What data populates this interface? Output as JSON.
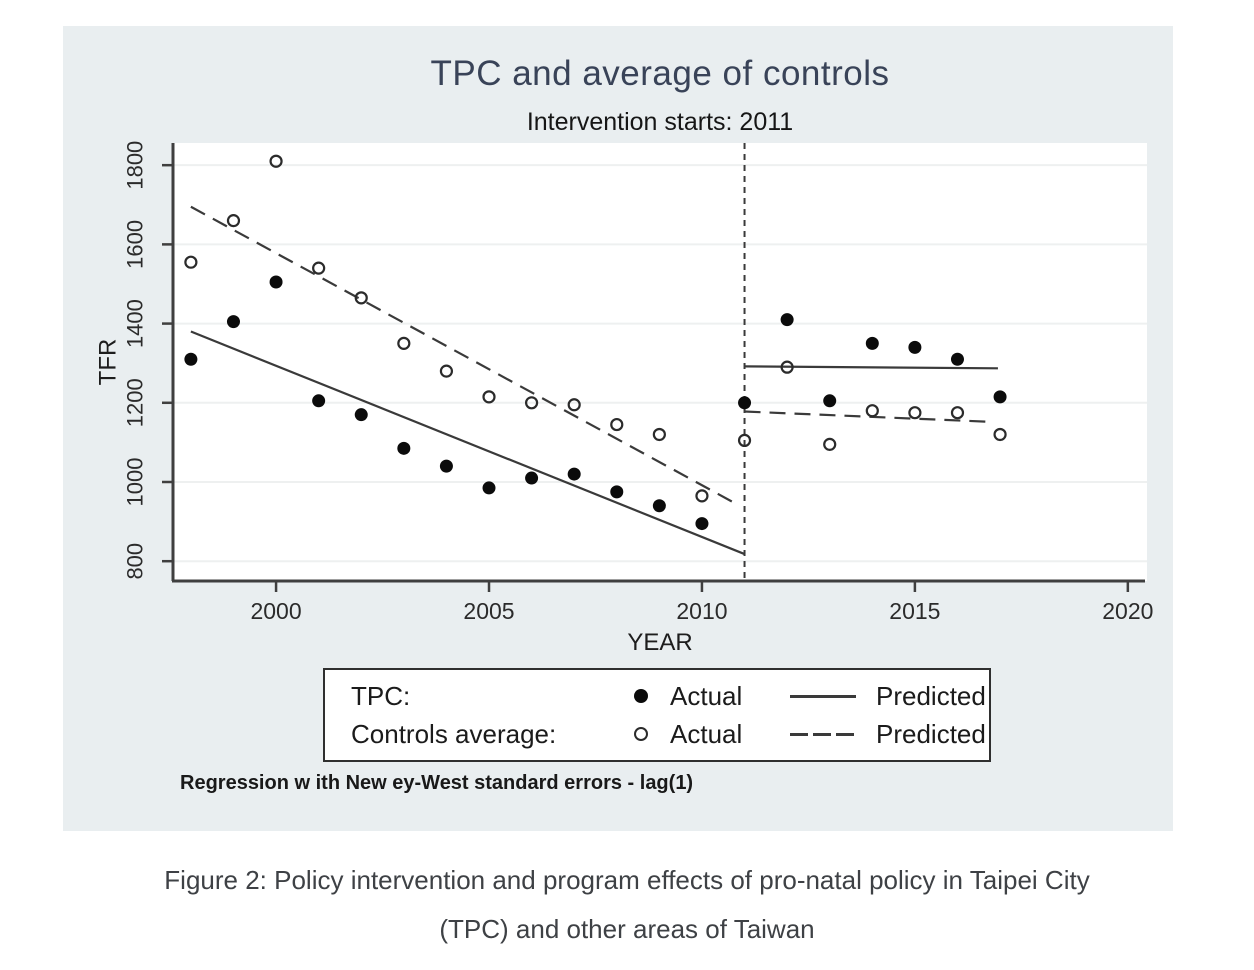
{
  "figure": {
    "title": "TPC and average of controls",
    "subtitle": "Intervention starts: 2011",
    "note": "Regression w ith New ey-West standard errors - lag(1)",
    "title_color": "#394358"
  },
  "legend": {
    "rows": [
      {
        "label": "TPC:",
        "marker": "filled-circle",
        "actual_label": "Actual",
        "line": "solid",
        "predicted_label": "Predicted"
      },
      {
        "label": "Controls average:",
        "marker": "open-circle",
        "actual_label": "Actual",
        "line": "dashed",
        "predicted_label": "Predicted"
      }
    ]
  },
  "caption": {
    "line1": "Figure 2: Policy intervention and program effects of pro-natal policy in Taipei City",
    "line2": "(TPC) and other areas of Taiwan"
  },
  "chart_data": {
    "type": "scatter",
    "title": "TPC and average of controls",
    "subtitle": "Intervention starts: 2011",
    "xlabel": "YEAR",
    "ylabel": "TFR",
    "x_range": [
      1997.58,
      2020.45
    ],
    "y_range": [
      750,
      1856
    ],
    "x_ticks": [
      2000,
      2005,
      2010,
      2015,
      2020
    ],
    "y_ticks": [
      800,
      1000,
      1200,
      1400,
      1600,
      1800
    ],
    "grid": "horizontal-only",
    "intervention_x": 2011,
    "colors": {
      "marker": "#0b0b0b",
      "line": "#3a3a3a",
      "grid": "#eef0f0",
      "axis": "#3f3f3f",
      "panel_bg": "#e9eef0"
    },
    "series": [
      {
        "name": "TPC actual",
        "marker": "filled",
        "x": [
          1998,
          1999,
          2000,
          2001,
          2002,
          2003,
          2004,
          2005,
          2006,
          2007,
          2008,
          2009,
          2010,
          2011,
          2012,
          2013,
          2014,
          2015,
          2016,
          2017
        ],
        "y": [
          1310,
          1405,
          1505,
          1205,
          1170,
          1085,
          1040,
          985,
          1010,
          1020,
          975,
          940,
          895,
          1200,
          1410,
          1205,
          1350,
          1340,
          1310,
          1215
        ]
      },
      {
        "name": "Controls average actual",
        "marker": "open",
        "x": [
          1998,
          1999,
          2000,
          2001,
          2002,
          2003,
          2004,
          2005,
          2006,
          2007,
          2008,
          2009,
          2010,
          2011,
          2012,
          2013,
          2014,
          2015,
          2016,
          2017
        ],
        "y": [
          1555,
          1660,
          1810,
          1540,
          1465,
          1350,
          1280,
          1215,
          1200,
          1195,
          1145,
          1120,
          965,
          1105,
          1290,
          1095,
          1180,
          1175,
          1175,
          1120
        ]
      },
      {
        "name": "TPC predicted (pre-intervention)",
        "style": "solid",
        "points": [
          [
            1998,
            1380
          ],
          [
            2011,
            818
          ]
        ]
      },
      {
        "name": "TPC predicted (post-intervention)",
        "style": "solid",
        "points": [
          [
            2011,
            1292
          ],
          [
            2016.95,
            1287
          ]
        ]
      },
      {
        "name": "Controls predicted (pre-intervention)",
        "style": "dashed",
        "points": [
          [
            1998,
            1695
          ],
          [
            2010.8,
            945
          ]
        ]
      },
      {
        "name": "Controls predicted (post-intervention)",
        "style": "dashed",
        "points": [
          [
            2011,
            1178
          ],
          [
            2016.75,
            1152
          ]
        ]
      }
    ]
  }
}
